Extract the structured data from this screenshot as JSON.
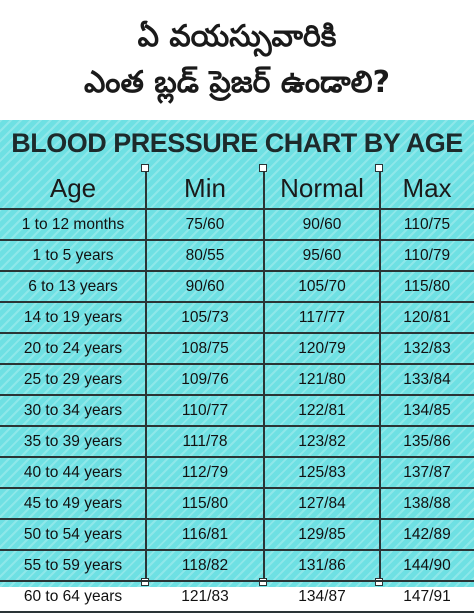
{
  "header": {
    "line1": "ఏ వయస్సువారికి",
    "line2": "ఎంత బ్లడ్ ప్రెజర్ ఉండాలి?"
  },
  "title": "BLOOD PRESSURE CHART BY AGE",
  "columns": [
    "Age",
    "Min",
    "Normal",
    "Max"
  ],
  "rows": [
    {
      "age": "1 to 12 months",
      "min": "75/60",
      "normal": "90/60",
      "max": "110/75"
    },
    {
      "age": "1 to 5 years",
      "min": "80/55",
      "normal": "95/60",
      "max": "110/79"
    },
    {
      "age": "6 to 13 years",
      "min": "90/60",
      "normal": "105/70",
      "max": "115/80"
    },
    {
      "age": "14 to 19 years",
      "min": "105/73",
      "normal": "117/77",
      "max": "120/81"
    },
    {
      "age": "20 to 24 years",
      "min": "108/75",
      "normal": "120/79",
      "max": "132/83"
    },
    {
      "age": "25 to 29 years",
      "min": "109/76",
      "normal": "121/80",
      "max": "133/84"
    },
    {
      "age": "30 to 34 years",
      "min": "110/77",
      "normal": "122/81",
      "max": "134/85"
    },
    {
      "age": "35 to 39 years",
      "min": "111/78",
      "normal": "123/82",
      "max": "135/86"
    },
    {
      "age": "40 to 44 years",
      "min": "112/79",
      "normal": "125/83",
      "max": "137/87"
    },
    {
      "age": "45 to 49 years",
      "min": "115/80",
      "normal": "127/84",
      "max": "138/88"
    },
    {
      "age": "50 to 54 years",
      "min": "116/81",
      "normal": "129/85",
      "max": "142/89"
    },
    {
      "age": "55 to 59 years",
      "min": "118/82",
      "normal": "131/86",
      "max": "144/90"
    },
    {
      "age": "60 to 64 years",
      "min": "121/83",
      "normal": "134/87",
      "max": "147/91"
    }
  ],
  "colors": {
    "table_background": "#6ee0e3",
    "line": "#2a3436",
    "text": "#111111"
  }
}
